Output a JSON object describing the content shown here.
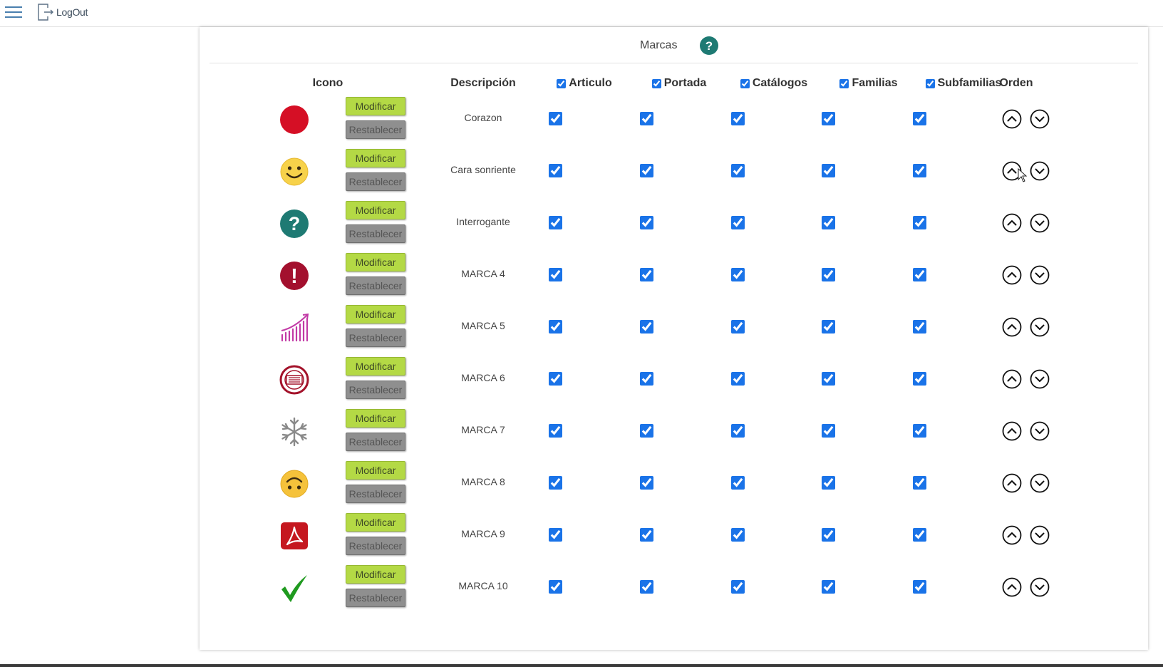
{
  "topbar": {
    "logout_label": "LogOut"
  },
  "panel": {
    "title": "Marcas"
  },
  "columns": {
    "icono": "Icono",
    "descripcion": "Descripción",
    "articulo": "Articulo",
    "portada": "Portada",
    "catalogos": "Catálogos",
    "familias": "Familias",
    "subfamilias": "Subfamilias",
    "orden": "Orden"
  },
  "buttons": {
    "modificar": "Modificar",
    "restablecer": "Restablecer"
  },
  "colors": {
    "accent_green": "#b4d945",
    "checkbox_blue": "#1a73e8",
    "help_teal": "#1e7a73"
  },
  "rows": [
    {
      "icon": "red-circle-icon",
      "description": "Corazon",
      "articulo": true,
      "portada": true,
      "catalogos": true,
      "familias": true,
      "subfamilias": true
    },
    {
      "icon": "smiley-icon",
      "description": "Cara sonriente",
      "articulo": true,
      "portada": true,
      "catalogos": true,
      "familias": true,
      "subfamilias": true
    },
    {
      "icon": "question-icon",
      "description": "Interrogante",
      "articulo": true,
      "portada": true,
      "catalogos": true,
      "familias": true,
      "subfamilias": true
    },
    {
      "icon": "exclamation-icon",
      "description": "MARCA 4",
      "articulo": true,
      "portada": true,
      "catalogos": true,
      "familias": true,
      "subfamilias": true
    },
    {
      "icon": "growth-chart-icon",
      "description": "MARCA 5",
      "articulo": true,
      "portada": true,
      "catalogos": true,
      "familias": true,
      "subfamilias": true
    },
    {
      "icon": "stamp-icon",
      "description": "MARCA 6",
      "articulo": true,
      "portada": true,
      "catalogos": true,
      "familias": true,
      "subfamilias": true
    },
    {
      "icon": "snowflake-icon",
      "description": "MARCA 7",
      "articulo": true,
      "portada": true,
      "catalogos": true,
      "familias": true,
      "subfamilias": true
    },
    {
      "icon": "upside-down-smiley-icon",
      "description": "MARCA 8",
      "articulo": true,
      "portada": true,
      "catalogos": true,
      "familias": true,
      "subfamilias": true
    },
    {
      "icon": "pdf-icon",
      "description": "MARCA 9",
      "articulo": true,
      "portada": true,
      "catalogos": true,
      "familias": true,
      "subfamilias": true
    },
    {
      "icon": "checkmark-icon",
      "description": "MARCA 10",
      "articulo": true,
      "portada": true,
      "catalogos": true,
      "familias": true,
      "subfamilias": true
    }
  ]
}
